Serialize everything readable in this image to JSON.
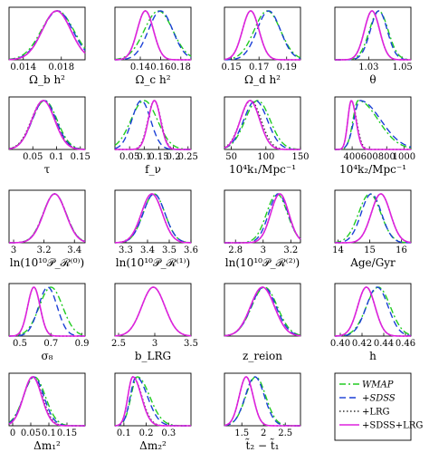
{
  "chart_data": {
    "type": "line",
    "legend": {
      "position": "bottom-right",
      "entries": [
        {
          "label": "WMAP",
          "color": "#22cc22",
          "style": "dash-dot"
        },
        {
          "label": "+SDSS",
          "color": "#1a3fd6",
          "style": "dashed"
        },
        {
          "label": "+LRG",
          "color": "#333333",
          "style": "dotted"
        },
        {
          "label": "+SDSS+LRG",
          "color": "#dd22dd",
          "style": "solid"
        }
      ]
    },
    "colors": {
      "wmap": "#22cc22",
      "sdss": "#1a3fd6",
      "lrg": "#333333",
      "both": "#dd22dd"
    },
    "panels": [
      {
        "xlabel": "Ω_b h²",
        "xlim": [
          0.0125,
          0.0205
        ],
        "ticks": [
          0.014,
          0.018
        ],
        "tick_labels": [
          "0.014",
          "0.018"
        ],
        "series": {
          "wmap": {
            "mu": 0.0176,
            "sd": 0.0017
          },
          "sdss": {
            "mu": 0.0176,
            "sd": 0.0016
          },
          "lrg": {
            "mu": 0.0175,
            "sd": 0.0015
          },
          "both": {
            "mu": 0.0175,
            "sd": 0.0015
          }
        }
      },
      {
        "xlabel": "Ω_c h²",
        "xlim": [
          0.115,
          0.19
        ],
        "ticks": [
          0.14,
          0.16,
          0.18
        ],
        "tick_labels": [
          "0.14",
          "0.16",
          "0.18"
        ],
        "series": {
          "wmap": {
            "mu": 0.158,
            "sd": 0.014
          },
          "sdss": {
            "mu": 0.16,
            "sd": 0.012
          },
          "lrg": {
            "mu": 0.145,
            "sd": 0.008
          },
          "both": {
            "mu": 0.145,
            "sd": 0.008
          }
        }
      },
      {
        "xlabel": "Ω_d h²",
        "xlim": [
          0.145,
          0.2
        ],
        "ticks": [
          0.15,
          0.17,
          0.19
        ],
        "tick_labels": [
          "0.15",
          "0.17",
          "0.19"
        ],
        "series": {
          "wmap": {
            "mu": 0.176,
            "sd": 0.0095
          },
          "sdss": {
            "mu": 0.177,
            "sd": 0.0085
          },
          "lrg": {
            "mu": 0.164,
            "sd": 0.006
          },
          "both": {
            "mu": 0.164,
            "sd": 0.006
          }
        }
      },
      {
        "xlabel": "θ",
        "xlim": [
          1.01,
          1.055
        ],
        "ticks": [
          1.03,
          1.05
        ],
        "tick_labels": [
          "1.03",
          "1.05"
        ],
        "series": {
          "wmap": {
            "mu": 1.036,
            "sd": 0.0055
          },
          "sdss": {
            "mu": 1.036,
            "sd": 0.005
          },
          "lrg": {
            "mu": 1.032,
            "sd": 0.0045
          },
          "both": {
            "mu": 1.032,
            "sd": 0.0045
          }
        }
      },
      {
        "xlabel": "τ",
        "xlim": [
          0.0,
          0.16
        ],
        "ticks": [
          0.05,
          0.1,
          0.15
        ],
        "tick_labels": [
          "0.05",
          "0.1",
          "0.15"
        ],
        "series": {
          "wmap": {
            "mu": 0.075,
            "sd": 0.026
          },
          "sdss": {
            "mu": 0.074,
            "sd": 0.025
          },
          "lrg": {
            "mu": 0.072,
            "sd": 0.025
          },
          "both": {
            "mu": 0.072,
            "sd": 0.024
          }
        }
      },
      {
        "xlabel": "f_ν",
        "xlim": [
          0.0,
          0.26
        ],
        "ticks": [
          0.05,
          0.1,
          0.15,
          0.2,
          0.25
        ],
        "tick_labels": [
          "0.05",
          "0.1",
          "0.15",
          "0.2",
          "0.25"
        ],
        "series": {
          "wmap": {
            "mu": 0.1,
            "sd": 0.045
          },
          "sdss": {
            "mu": 0.09,
            "sd": 0.032
          },
          "lrg": {
            "mu": 0.135,
            "sd": 0.022
          },
          "both": {
            "mu": 0.135,
            "sd": 0.021
          }
        }
      },
      {
        "xlabel": "10⁴k₁/Mpc⁻¹",
        "xlim": [
          40,
          150
        ],
        "ticks": [
          50,
          100,
          150
        ],
        "tick_labels": [
          "50",
          "100",
          "150"
        ],
        "series": {
          "wmap": {
            "mu": 88,
            "sd": 18
          },
          "sdss": {
            "mu": 85,
            "sd": 17
          },
          "lrg": {
            "mu": 78,
            "sd": 15
          },
          "both": {
            "mu": 77,
            "sd": 14
          }
        }
      },
      {
        "xlabel": "10⁴k₂/Mpc⁻¹",
        "xlim": [
          200,
          1080
        ],
        "ticks": [
          400,
          600,
          800,
          1000
        ],
        "tick_labels": [
          "400",
          "600",
          "800",
          "1000"
        ],
        "series": {
          "wmap": {
            "mu": 470,
            "sdL": 60,
            "sdR": 230
          },
          "sdss": {
            "mu": 490,
            "sdL": 70,
            "sdR": 240
          },
          "lrg": {
            "mu": 390,
            "sdL": 40,
            "sdR": 60
          },
          "both": {
            "mu": 390,
            "sdL": 40,
            "sdR": 55
          }
        }
      },
      {
        "xlabel": "ln(10¹⁰𝒫_ℛ⁽⁰⁾)",
        "xlim": [
          2.97,
          3.47
        ],
        "ticks": [
          3.0,
          3.2,
          3.4
        ],
        "tick_labels": [
          "3",
          "3.2",
          "3.4"
        ],
        "series": {
          "wmap": {
            "mu": 3.27,
            "sd": 0.075
          },
          "sdss": {
            "mu": 3.27,
            "sd": 0.074
          },
          "lrg": {
            "mu": 3.27,
            "sd": 0.074
          },
          "both": {
            "mu": 3.27,
            "sd": 0.073
          }
        }
      },
      {
        "xlabel": "ln(10¹⁰𝒫_ℛ⁽¹⁾)",
        "xlim": [
          3.25,
          3.6
        ],
        "ticks": [
          3.3,
          3.4,
          3.5,
          3.6
        ],
        "tick_labels": [
          "3.3",
          "3.4",
          "3.5",
          "3.6"
        ],
        "series": {
          "wmap": {
            "mu": 3.43,
            "sd": 0.05
          },
          "sdss": {
            "mu": 3.43,
            "sd": 0.05
          },
          "lrg": {
            "mu": 3.42,
            "sd": 0.048
          },
          "both": {
            "mu": 3.42,
            "sd": 0.048
          }
        }
      },
      {
        "xlabel": "ln(10¹⁰𝒫_ℛ⁽²⁾)",
        "xlim": [
          2.72,
          3.27
        ],
        "ticks": [
          2.8,
          3.0,
          3.2
        ],
        "tick_labels": [
          "2.8",
          "3",
          "3.2"
        ],
        "series": {
          "wmap": {
            "mu": 3.1,
            "sd": 0.075
          },
          "sdss": {
            "mu": 3.11,
            "sd": 0.07
          },
          "lrg": {
            "mu": 3.12,
            "sd": 0.065
          },
          "both": {
            "mu": 3.12,
            "sd": 0.065
          }
        }
      },
      {
        "xlabel": "Age/Gyr",
        "xlim": [
          13.9,
          16.3
        ],
        "ticks": [
          14,
          15,
          16
        ],
        "tick_labels": [
          "14",
          "15",
          "16"
        ],
        "series": {
          "wmap": {
            "mu": 15.0,
            "sd": 0.35
          },
          "sdss": {
            "mu": 15.05,
            "sd": 0.32
          },
          "lrg": {
            "mu": 15.35,
            "sd": 0.3
          },
          "both": {
            "mu": 15.35,
            "sd": 0.3
          }
        }
      },
      {
        "xlabel": "σ₈",
        "xlim": [
          0.43,
          0.92
        ],
        "ticks": [
          0.5,
          0.7,
          0.9
        ],
        "tick_labels": [
          "0.5",
          "0.7",
          "0.9"
        ],
        "series": {
          "wmap": {
            "mu": 0.7,
            "sd": 0.075
          },
          "sdss": {
            "mu": 0.68,
            "sd": 0.06
          },
          "lrg": {
            "mu": 0.59,
            "sd": 0.04
          },
          "both": {
            "mu": 0.59,
            "sd": 0.04
          }
        }
      },
      {
        "xlabel": "b_LRG",
        "xlim": [
          2.45,
          3.5
        ],
        "ticks": [
          2.5,
          3.0,
          3.5
        ],
        "tick_labels": [
          "2.5",
          "3",
          "3.5"
        ],
        "series": {
          "lrg": {
            "mu": 2.98,
            "sd": 0.16
          },
          "both": {
            "mu": 2.98,
            "sd": 0.16
          }
        }
      },
      {
        "xlabel": "z_reion",
        "xlim": [
          3.5,
          22.5
        ],
        "ticks": [],
        "tick_labels": [],
        "series": {
          "wmap": {
            "mu": 13.5,
            "sd": 3.2
          },
          "sdss": {
            "mu": 13.3,
            "sd": 3.1
          },
          "lrg": {
            "mu": 13.0,
            "sd": 3.0
          },
          "both": {
            "mu": 13.0,
            "sd": 3.0
          }
        }
      },
      {
        "xlabel": "h",
        "xlim": [
          0.395,
          0.465
        ],
        "ticks": [
          0.4,
          0.42,
          0.44,
          0.46
        ],
        "tick_labels": [
          "0.40",
          "0.42",
          "0.44",
          "0.46"
        ],
        "series": {
          "wmap": {
            "mu": 0.435,
            "sd": 0.011
          },
          "sdss": {
            "mu": 0.434,
            "sd": 0.01
          },
          "lrg": {
            "mu": 0.424,
            "sd": 0.008
          },
          "both": {
            "mu": 0.424,
            "sd": 0.008
          }
        }
      },
      {
        "xlabel": "Δm₁²",
        "xlim": [
          -0.01,
          0.2
        ],
        "ticks": [
          0.0,
          0.05,
          0.1,
          0.15
        ],
        "tick_labels": [
          "0",
          "0.05",
          "0.1",
          "0.15"
        ],
        "series": {
          "wmap": {
            "mu": 0.06,
            "sd": 0.03
          },
          "sdss": {
            "mu": 0.058,
            "sd": 0.028
          },
          "lrg": {
            "mu": 0.056,
            "sd": 0.026
          },
          "both": {
            "mu": 0.055,
            "sd": 0.025
          }
        }
      },
      {
        "xlabel": "Δm₂²",
        "xlim": [
          0.06,
          0.4
        ],
        "ticks": [
          0.1,
          0.2,
          0.3
        ],
        "tick_labels": [
          "0.1",
          "0.2",
          "0.3"
        ],
        "series": {
          "wmap": {
            "mu": 0.16,
            "sdL": 0.028,
            "sdR": 0.055
          },
          "sdss": {
            "mu": 0.155,
            "sdL": 0.026,
            "sdR": 0.05
          },
          "lrg": {
            "mu": 0.14,
            "sdL": 0.022,
            "sdR": 0.04
          },
          "both": {
            "mu": 0.14,
            "sdL": 0.022,
            "sdR": 0.038
          }
        }
      },
      {
        "xlabel": "t̃₂ − t̃₁",
        "xlim": [
          1.1,
          2.85
        ],
        "ticks": [
          1.5,
          2.0,
          2.5
        ],
        "tick_labels": [
          "1.5",
          "2",
          "2.5"
        ],
        "series": {
          "wmap": {
            "mu": 1.82,
            "sd": 0.23
          },
          "sdss": {
            "mu": 1.8,
            "sd": 0.22
          },
          "lrg": {
            "mu": 1.6,
            "sd": 0.16
          },
          "both": {
            "mu": 1.6,
            "sd": 0.16
          }
        }
      }
    ]
  }
}
